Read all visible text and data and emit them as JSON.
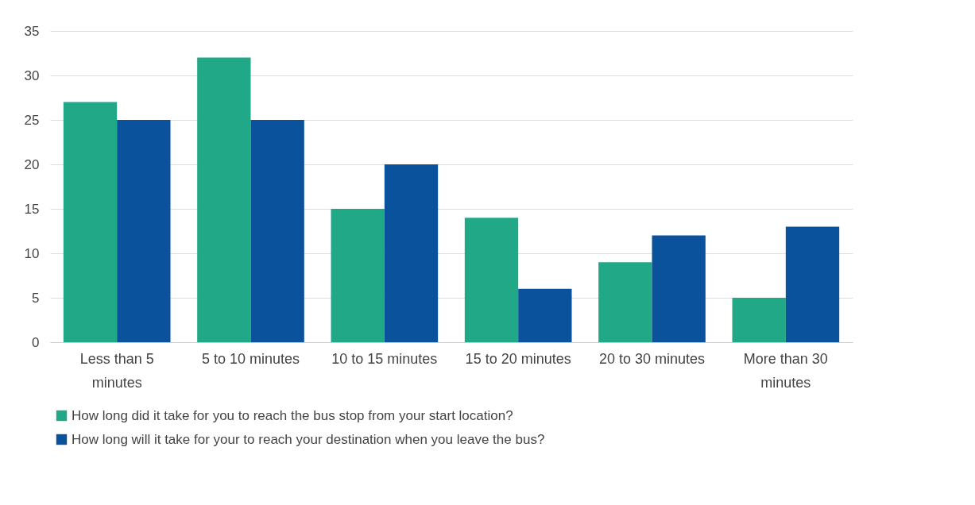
{
  "chart_data": {
    "type": "bar",
    "categories": [
      "Less than 5 minutes",
      "5 to 10 minutes",
      "10 to 15 minutes",
      "15 to 20 minutes",
      "20 to 30 minutes",
      "More than 30 minutes"
    ],
    "series": [
      {
        "name": "How long did it take for you to reach the bus stop from your start location?",
        "color": "#21a886",
        "values": [
          27,
          32,
          15,
          14,
          9,
          5
        ]
      },
      {
        "name": "How long will it take for your to reach your destination when you leave the bus?",
        "color": "#0a529c",
        "values": [
          25,
          25,
          20,
          6,
          12,
          13
        ]
      }
    ],
    "ylim": [
      0,
      35
    ],
    "yticks": [
      0,
      5,
      10,
      15,
      20,
      25,
      30,
      35
    ],
    "grid": "y",
    "legend": "bottom"
  }
}
